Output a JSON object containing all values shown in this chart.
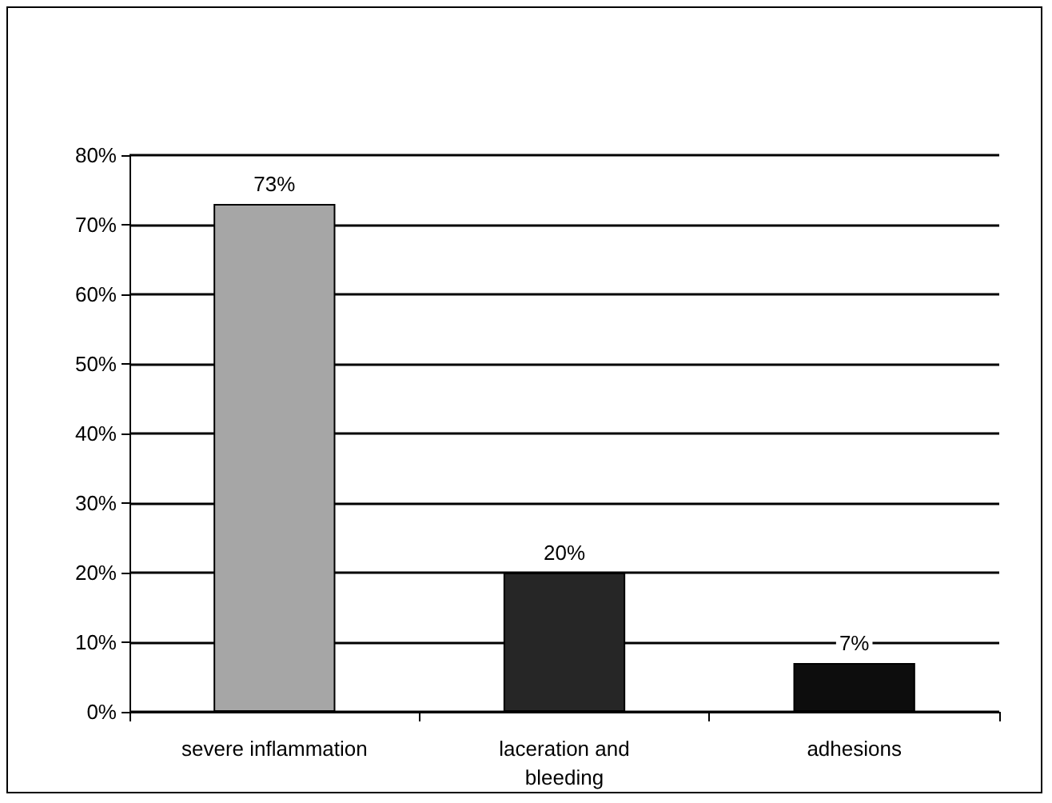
{
  "chart_data": {
    "type": "bar",
    "categories": [
      "severe inflammation",
      "laceration and\nbleeding",
      "adhesions"
    ],
    "values": [
      73,
      20,
      7
    ],
    "colors": [
      "#a6a6a6",
      "#262626",
      "#0d0d0d"
    ],
    "value_labels": [
      "73%",
      "20%",
      "7%"
    ],
    "ylim": [
      0,
      80
    ],
    "yticks": [
      {
        "value": 0,
        "label": "0%"
      },
      {
        "value": 10,
        "label": "10%"
      },
      {
        "value": 20,
        "label": "20%"
      },
      {
        "value": 30,
        "label": "30%"
      },
      {
        "value": 40,
        "label": "40%"
      },
      {
        "value": 50,
        "label": "50%"
      },
      {
        "value": 60,
        "label": "60%"
      },
      {
        "value": 70,
        "label": "70%"
      },
      {
        "value": 80,
        "label": "80%"
      }
    ],
    "grid": true
  }
}
